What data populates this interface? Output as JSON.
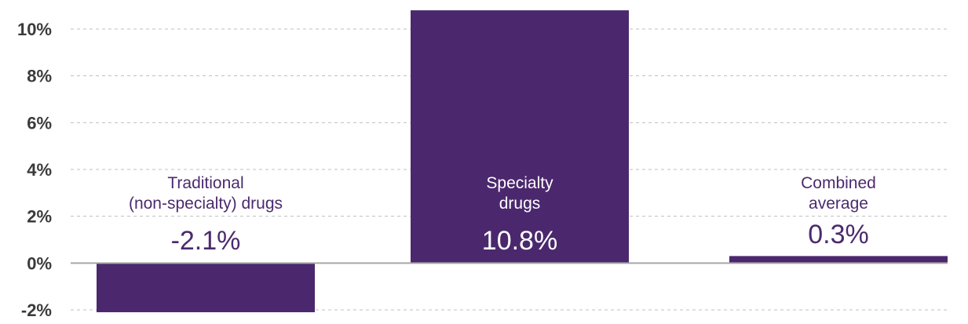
{
  "chart_data": {
    "type": "bar",
    "categories": [
      [
        "Traditional",
        "(non-specialty) drugs"
      ],
      [
        "Specialty",
        "drugs"
      ],
      [
        "Combined",
        "average"
      ]
    ],
    "values": [
      -2.1,
      10.8,
      0.3
    ],
    "value_labels": [
      "-2.1%",
      "10.8%",
      "0.3%"
    ],
    "title": "",
    "xlabel": "",
    "ylabel": "",
    "ylim": [
      -2,
      10
    ],
    "yticks": [
      -2,
      0,
      2,
      4,
      6,
      8,
      10
    ],
    "ytick_labels": [
      "-2%",
      "0%",
      "2%",
      "4%",
      "6%",
      "8%",
      "10%"
    ],
    "grid": true,
    "bar_color": "#4b286d",
    "label_color": "#4b2a6e",
    "gridline_color": "#bfbfbf",
    "axis_color": "#a6a6a6"
  }
}
